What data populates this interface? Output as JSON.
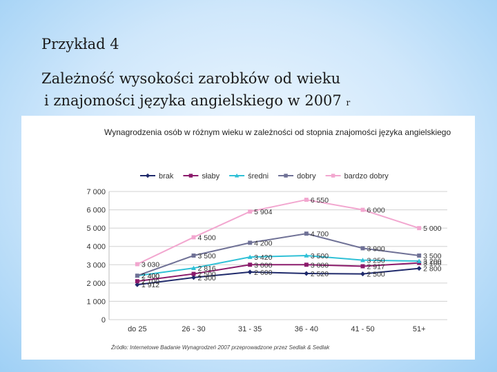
{
  "slide": {
    "heading": "Przykład 4",
    "title_line1": "Zależność wysokości  zarobków od wieku",
    "title_line2": "i  znajomości języka angielskiego w 2007",
    "title_suffix": "r"
  },
  "chart_data": {
    "type": "line",
    "title": "Wynagrodzenia osób w różnym wieku w zależności od stopnia znajomości języka angielskiego",
    "source": "Źródło: Internetowe Badanie Wynagrodzeń 2007 przeprowadzone przez Sedlak & Sedlak",
    "categories": [
      "do 25",
      "26 - 30",
      "31 - 35",
      "36 - 40",
      "41 - 50",
      "51+"
    ],
    "ylim": [
      0,
      7000
    ],
    "yticks": [
      0,
      1000,
      2000,
      3000,
      4000,
      5000,
      6000,
      7000
    ],
    "ytick_labels": [
      "0",
      "1 000",
      "2 000",
      "3 000",
      "4 000",
      "5 000",
      "6 000",
      "7 000"
    ],
    "grid": true,
    "legend_position": "top",
    "series": [
      {
        "name": "brak",
        "color": "#1f2a6b",
        "marker": "diamond",
        "values": [
          1912,
          2300,
          2600,
          2520,
          2500,
          2800
        ],
        "labels": [
          "1 912",
          "2 300",
          "2 600",
          "2 520",
          "2 500",
          "2 800"
        ]
      },
      {
        "name": "słaby",
        "color": "#8b1a6b",
        "marker": "square",
        "values": [
          2100,
          2500,
          3000,
          3000,
          2917,
          3100
        ],
        "labels": [
          "2 100",
          "2 500",
          "3 000",
          "3 000",
          "2 917",
          "3 100"
        ]
      },
      {
        "name": "średni",
        "color": "#2fc0d6",
        "marker": "triangle",
        "values": [
          2400,
          2816,
          3420,
          3500,
          3250,
          3200
        ],
        "labels": [
          "2 400",
          "2 816",
          "3 420",
          "3 500",
          "3 250",
          "3 200"
        ]
      },
      {
        "name": "dobry",
        "color": "#6f7196",
        "marker": "square",
        "values": [
          2400,
          3500,
          4200,
          4700,
          3900,
          3500
        ],
        "labels": [
          "2 400",
          "3 500",
          "4 200",
          "4 700",
          "3 900",
          "3 500"
        ]
      },
      {
        "name": "bardzo dobry",
        "color": "#f2a6cf",
        "marker": "square",
        "values": [
          3030,
          4500,
          5904,
          6550,
          6000,
          5000
        ],
        "labels": [
          "3 030",
          "4 500",
          "5 904",
          "6 550",
          "6 000",
          "5 000"
        ]
      }
    ]
  }
}
